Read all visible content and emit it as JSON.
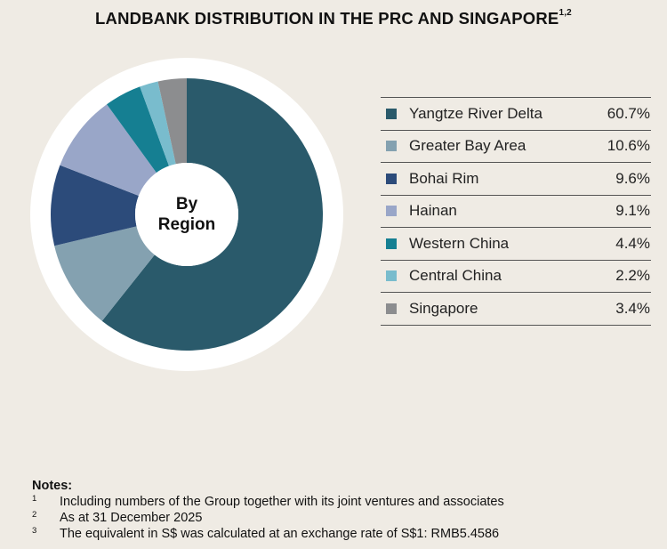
{
  "title": {
    "text": "LANDBANK DISTRIBUTION IN THE PRC AND SINGAPORE",
    "superscript": "1,2"
  },
  "center_label": {
    "line1": "By",
    "line2": "Region"
  },
  "chart_data": {
    "type": "pie",
    "title": "LANDBANK DISTRIBUTION IN THE PRC AND SINGAPORE",
    "donut": true,
    "center_text": "By Region",
    "legend_position": "right",
    "start": "12 o'clock",
    "direction": "clockwise",
    "slices": [
      {
        "label": "Yangtze River Delta",
        "value": 60.7,
        "display": "60.7%",
        "color": "#2a5a6b"
      },
      {
        "label": "Greater Bay Area",
        "value": 10.6,
        "display": "10.6%",
        "color": "#84a1b0"
      },
      {
        "label": "Bohai Rim",
        "value": 9.6,
        "display": "9.6%",
        "color": "#2c4b7a"
      },
      {
        "label": "Hainan",
        "value": 9.1,
        "display": "9.1%",
        "color": "#99a6c8"
      },
      {
        "label": "Western China",
        "value": 4.4,
        "display": "4.4%",
        "color": "#157f92"
      },
      {
        "label": "Central China",
        "value": 2.2,
        "display": "2.2%",
        "color": "#79bccd"
      },
      {
        "label": "Singapore",
        "value": 3.4,
        "display": "3.4%",
        "color": "#8c8d8f"
      }
    ]
  },
  "notes": {
    "heading": "Notes:",
    "items": [
      {
        "num": "1",
        "text": "Including numbers of the Group together with its joint ventures and associates"
      },
      {
        "num": "2",
        "text": "As at 31 December 2025"
      },
      {
        "num": "3",
        "text": "The equivalent in S$ was calculated at an exchange rate of S$1: RMB5.4586"
      }
    ]
  }
}
